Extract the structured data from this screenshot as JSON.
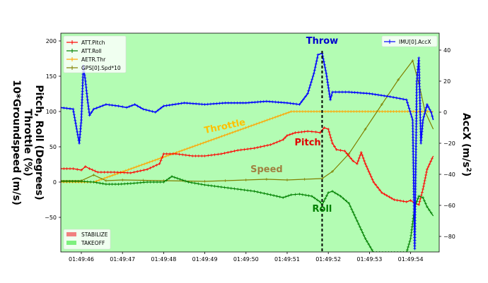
{
  "chart_data": {
    "type": "line",
    "title": "",
    "xlabel": "",
    "ylabel_left": [
      "Pitch, Roll (Degrees)",
      "Throttle (%)",
      "10*Groundspeed (m/s)"
    ],
    "ylabel_right": "AccX (m/s²)",
    "x_ticks": [
      "01:49:46",
      "01:49:47",
      "01:49:48",
      "01:49:49",
      "01:49:50",
      "01:49:51",
      "01:49:52",
      "01:49:53",
      "01:49:54"
    ],
    "x_unit": "seconds after 01:49:00",
    "xlim": [
      45.5,
      54.55
    ],
    "ylim_left": [
      -100,
      210
    ],
    "yticks_left": [
      -50,
      0,
      50,
      100,
      150,
      200
    ],
    "ylim_right": [
      -90,
      50
    ],
    "yticks_right": [
      -80,
      -60,
      -40,
      -20,
      0,
      20,
      40
    ],
    "grid": false,
    "background_color": "#b3fcb3",
    "legend_left": {
      "position": "upper left",
      "entries": [
        {
          "label": "ATT.Pitch",
          "color": "#ff0000"
        },
        {
          "label": "ATT.Roll",
          "color": "#008000"
        },
        {
          "label": "AETR.Thr",
          "color": "#ffa500"
        },
        {
          "label": "GPS[0].Spd*10",
          "color": "#808000"
        }
      ]
    },
    "legend_right": {
      "position": "upper right",
      "entries": [
        {
          "label": "IMU[0].AccX",
          "color": "#0000ff"
        }
      ]
    },
    "legend_modes": {
      "position": "lower left",
      "entries": [
        {
          "label": "STABILIZE",
          "color": "#f08080"
        },
        {
          "label": "TAKEOFF",
          "color": "#7ff07f"
        }
      ]
    },
    "annotations": [
      {
        "text": "Throw",
        "color": "#0000cd",
        "x": 51.85,
        "y_right": 44
      },
      {
        "text": "Throttle",
        "color": "#ffc000",
        "x": 49.5,
        "y": 75,
        "rotation": -12
      },
      {
        "text": "Pitch",
        "color": "#e00000",
        "x": 51.5,
        "y": 52
      },
      {
        "text": "Speed",
        "color": "#a08040",
        "x": 50.5,
        "y": 14
      },
      {
        "text": "Roll",
        "color": "#008000",
        "x": 51.85,
        "y": -42
      }
    ],
    "vline": {
      "x": 51.85,
      "style": "dashed",
      "color": "#000000",
      "label": "Throw"
    },
    "series": [
      {
        "name": "ATT.Pitch",
        "axis": "left",
        "color": "#ff0000",
        "x": [
          45.5,
          45.8,
          46.0,
          46.1,
          46.2,
          46.4,
          46.8,
          47.2,
          47.6,
          47.9,
          48.0,
          48.3,
          48.7,
          49.0,
          49.4,
          49.8,
          50.2,
          50.6,
          50.9,
          51.0,
          51.2,
          51.5,
          51.7,
          51.8,
          51.9,
          52.0,
          52.1,
          52.2,
          52.4,
          52.6,
          52.7,
          52.8,
          52.9,
          53.1,
          53.3,
          53.6,
          53.9,
          54.0,
          54.1,
          54.2,
          54.3,
          54.4,
          54.55
        ],
        "values": [
          19,
          19,
          17,
          22,
          19,
          14,
          14,
          13,
          18,
          26,
          40,
          40,
          37,
          37,
          40,
          45,
          48,
          53,
          60,
          66,
          70,
          72,
          71,
          70,
          77,
          75,
          55,
          46,
          44,
          30,
          26,
          42,
          26,
          0,
          -15,
          -25,
          -28,
          -26,
          -30,
          -32,
          -10,
          18,
          37
        ]
      },
      {
        "name": "ATT.Roll",
        "axis": "left",
        "color": "#008000",
        "x": [
          45.5,
          46.0,
          46.3,
          46.6,
          46.9,
          47.2,
          47.6,
          48.0,
          48.2,
          48.6,
          49.0,
          49.4,
          49.8,
          50.2,
          50.6,
          50.9,
          51.1,
          51.3,
          51.6,
          51.8,
          51.85,
          52.0,
          52.1,
          52.3,
          52.5,
          52.7,
          52.9,
          53.1,
          53.9,
          54.0,
          54.1,
          54.2,
          54.3,
          54.4,
          54.55
        ],
        "values": [
          1,
          1,
          0,
          -3,
          -3,
          -2,
          0,
          0,
          8,
          0,
          -4,
          -7,
          -10,
          -13,
          -18,
          -22,
          -18,
          -17,
          -20,
          -28,
          -32,
          -15,
          -13,
          -20,
          -30,
          -55,
          -80,
          -100,
          -100,
          -80,
          -35,
          -20,
          -22,
          -35,
          -48
        ]
      },
      {
        "name": "AETR.Thr",
        "axis": "left",
        "color": "#ffa500",
        "x": [
          45.5,
          46.3,
          51.1,
          54.55
        ],
        "values": [
          0,
          0,
          100,
          100
        ]
      },
      {
        "name": "GPS[0].Spd*10",
        "axis": "left",
        "color": "#808000",
        "x": [
          45.5,
          46.0,
          46.3,
          46.6,
          47.0,
          48.0,
          49.0,
          50.0,
          50.5,
          51.0,
          51.85,
          52.1,
          52.5,
          52.9,
          53.3,
          53.7,
          54.05,
          54.2,
          54.35,
          54.55
        ],
        "values": [
          2,
          2,
          10,
          2,
          3,
          2,
          1,
          3,
          4,
          3,
          5,
          15,
          40,
          75,
          110,
          145,
          172,
          140,
          100,
          75
        ]
      },
      {
        "name": "IMU[0].AccX",
        "axis": "right",
        "color": "#0000ff",
        "x": [
          45.5,
          45.8,
          45.95,
          46.0,
          46.05,
          46.1,
          46.15,
          46.2,
          46.3,
          46.6,
          46.9,
          47.1,
          47.3,
          47.5,
          47.8,
          48.0,
          48.5,
          49.0,
          49.5,
          50.0,
          50.5,
          51.0,
          51.3,
          51.5,
          51.65,
          51.75,
          51.85,
          51.95,
          52.05,
          52.1,
          52.5,
          53.0,
          53.5,
          53.9,
          54.05,
          54.1,
          54.15,
          54.2,
          54.25,
          54.3,
          54.4,
          54.5,
          54.55
        ],
        "values": [
          3,
          2,
          -20,
          -5,
          30,
          20,
          8,
          -2,
          2,
          5,
          4,
          3,
          5,
          2,
          0,
          4,
          6,
          5,
          6,
          6,
          7,
          6,
          5,
          12,
          25,
          37,
          38,
          25,
          8,
          13,
          13,
          12,
          10,
          8,
          -5,
          -88,
          20,
          35,
          -20,
          -5,
          5,
          0,
          -5
        ]
      }
    ]
  },
  "labels": {
    "left_axis_line1": "Pitch, Roll (Degrees)",
    "left_axis_line2": "Throttle (%)",
    "left_axis_line3": "10*Groundspeed (m/s)",
    "right_axis": "AccX (m/s",
    "right_axis_sup": "2",
    "right_axis_end": ")"
  }
}
